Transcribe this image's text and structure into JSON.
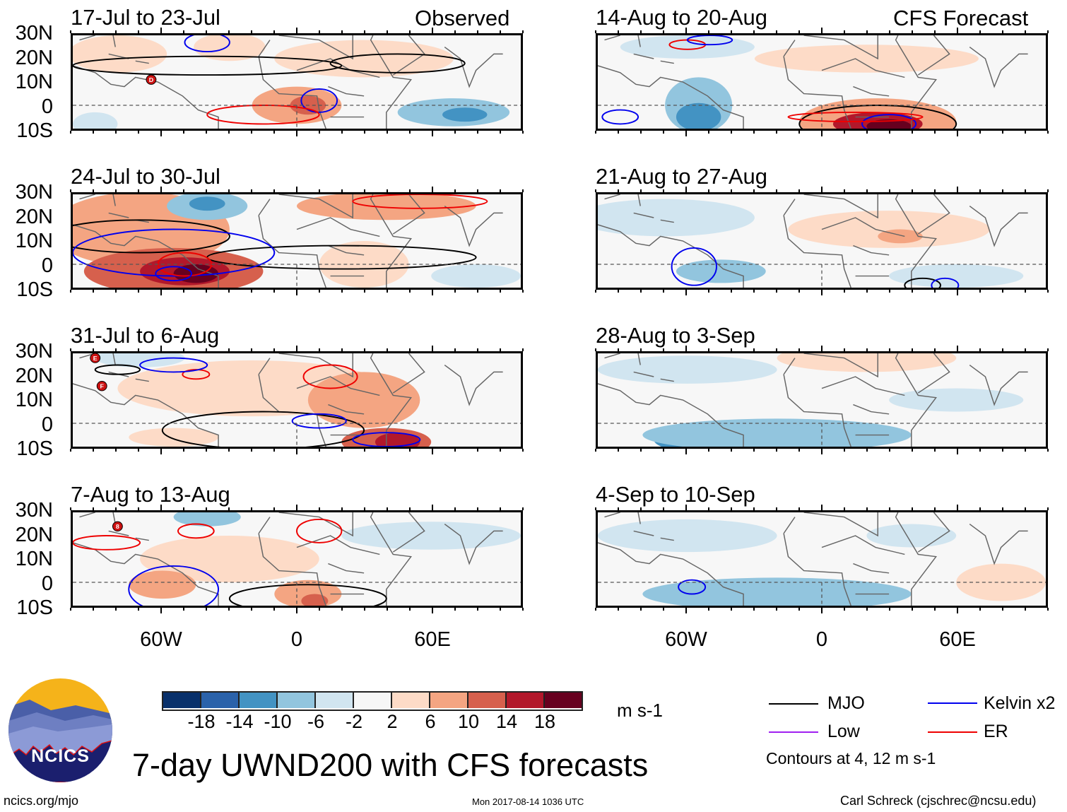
{
  "chart_data": {
    "type": "heatmap",
    "title": "7-day UWND200 with CFS forecasts",
    "variable": "200-hPa zonal wind anomaly",
    "units": "m s-1",
    "x_ticks": [
      "60W",
      "0",
      "60E"
    ],
    "x_range_deg": [
      -100,
      100
    ],
    "y_ticks": [
      "30N",
      "20N",
      "10N",
      "0",
      "10S"
    ],
    "y_range_deg": [
      -10,
      30
    ],
    "grid": false,
    "colorbar": {
      "levels": [
        -18,
        -14,
        -10,
        -6,
        -2,
        2,
        6,
        10,
        14,
        18
      ],
      "tick_labels": [
        "-18",
        "-14",
        "-10",
        "-6",
        "-2",
        "2",
        "6",
        "10",
        "14",
        "18"
      ],
      "colors": [
        "#08306b",
        "#2b62aa",
        "#4393c3",
        "#92c5de",
        "#d1e5f0",
        "#f7f7f7",
        "#fddbc7",
        "#f4a582",
        "#d6604d",
        "#b2182b",
        "#67001f"
      ],
      "placement": "bottom-center"
    },
    "columns": [
      {
        "label": "Observed",
        "placement": "top-left-column"
      },
      {
        "label": "CFS Forecast",
        "placement": "top-right-column"
      }
    ],
    "panels": [
      {
        "period": "17-Jul to 23-Jul",
        "source": "Observed",
        "storm_markers": [
          "D"
        ],
        "dominant_anomaly": "weak positive N Atlantic/Africa; negative Indian Ocean ~ -6"
      },
      {
        "period": "24-Jul to 30-Jul",
        "source": "Observed",
        "storm_markers": [],
        "dominant_anomaly": "strong positive NE Brazil > 18"
      },
      {
        "period": "31-Jul to 6-Aug",
        "source": "Observed",
        "storm_markers": [
          "E",
          "F"
        ],
        "dominant_anomaly": "positive Africa; max ~14-18 E Africa south of equator"
      },
      {
        "period": "7-Aug to 13-Aug",
        "source": "Observed",
        "storm_markers": [
          "8"
        ],
        "dominant_anomaly": "weak mixed; positive ~6-10 Gulf of Guinea"
      },
      {
        "period": "14-Aug to 20-Aug",
        "source": "CFS Forecast",
        "storm_markers": [],
        "dominant_anomaly": "positive > 18 S Africa; negative ~ -10 NE Brazil"
      },
      {
        "period": "21-Aug to 27-Aug",
        "source": "CFS Forecast",
        "storm_markers": [],
        "dominant_anomaly": "weak; positive ~6 Sudan"
      },
      {
        "period": "28-Aug to 3-Sep",
        "source": "CFS Forecast",
        "storm_markers": [],
        "dominant_anomaly": "negative ~ -10 S Atlantic/Brazil"
      },
      {
        "period": "4-Sep to 10-Sep",
        "source": "CFS Forecast",
        "storm_markers": [],
        "dominant_anomaly": "negative ~ -6 tropical Atlantic"
      }
    ],
    "legend": {
      "placement": "bottom-right",
      "entries": [
        {
          "name": "MJO",
          "color": "#000000"
        },
        {
          "name": "Kelvin x2",
          "color": "#0000ee"
        },
        {
          "name": "Low",
          "color": "#a020f0"
        },
        {
          "name": "ER",
          "color": "#ee0000"
        }
      ],
      "note": "Contours at 4, 12 m s-1"
    }
  },
  "labels": {
    "observed": "Observed",
    "forecast": "CFS Forecast",
    "units": "m s-1",
    "main_title": "7-day UWND200 with CFS forecasts",
    "site": "ncics.org/mjo",
    "timestamp": "Mon 2017-08-14 1036 UTC",
    "author": "Carl Schreck (cjschrec@ncsu.edu)",
    "logo_text": "NCICS",
    "contour_note": "Contours at 4, 12 m s-1"
  }
}
